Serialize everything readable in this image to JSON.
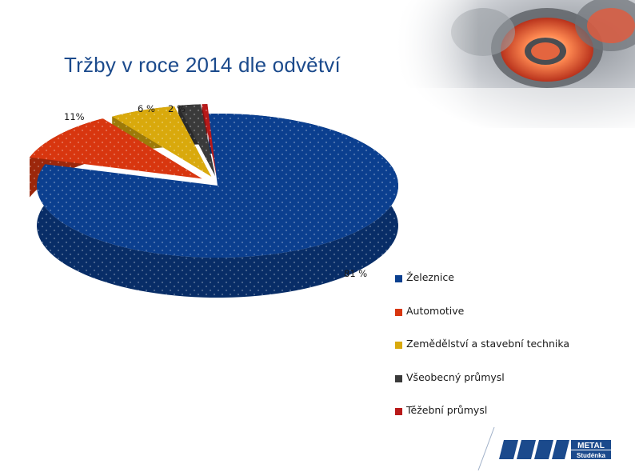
{
  "slide": {
    "title": "Tržby v roce 2014 dle odvětví"
  },
  "chart_data": {
    "type": "pie",
    "title": "",
    "categories": [
      "Železnice",
      "Automotive",
      "Zemědělství a stavební technika",
      "Všeobecný průmysl",
      "Těžební průmysl"
    ],
    "values": [
      81,
      11,
      6,
      2,
      0.5
    ],
    "data_labels": [
      "81 %",
      "11%",
      "6 %",
      "2 %",
      ""
    ],
    "colors": [
      "#0b3f8f",
      "#d8360f",
      "#d9a90c",
      "#3a3a3a",
      "#b81919"
    ],
    "legend_position": "right",
    "style": "3d-exploded"
  },
  "logo": {
    "brand": "METAL",
    "sub": "Studénka"
  }
}
